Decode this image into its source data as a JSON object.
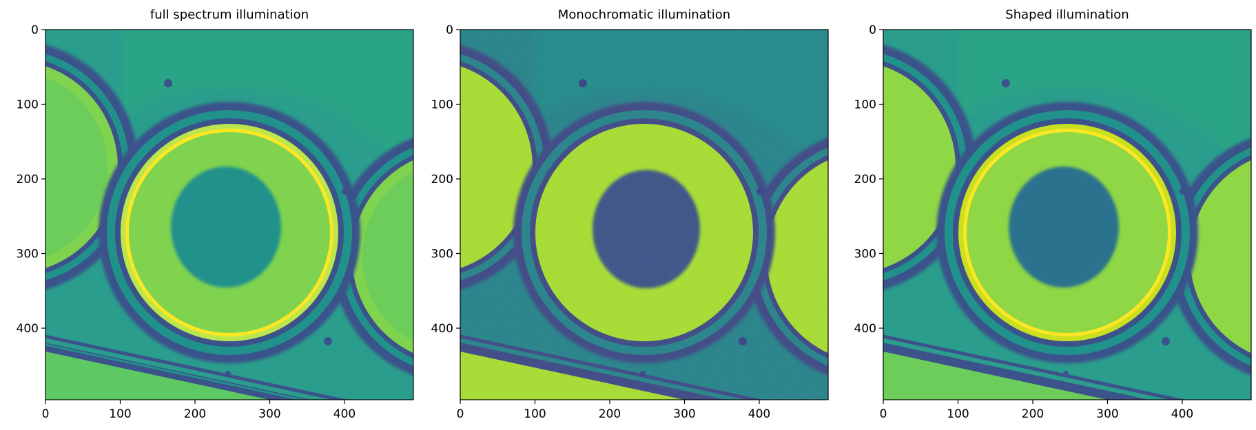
{
  "colors": {
    "viridis_dark": "#440154",
    "viridis_deep_blue": "#3b528b",
    "viridis_teal": "#21918c",
    "viridis_green": "#5ec962",
    "viridis_yellow": "#fde725",
    "axis": "#000000",
    "background": "#ffffff"
  },
  "panels": [
    {
      "title": "full spectrum illumination",
      "x_ticks": [
        "0",
        "100",
        "200",
        "300",
        "400"
      ],
      "y_ticks": [
        "0",
        "100",
        "200",
        "300",
        "400"
      ]
    },
    {
      "title": "Monochromatic illumination",
      "x_ticks": [
        "0",
        "100",
        "200",
        "300",
        "400"
      ],
      "y_ticks": [
        "0",
        "100",
        "200",
        "300",
        "400"
      ]
    },
    {
      "title": "Shaped illumination",
      "x_ticks": [
        "0",
        "100",
        "200",
        "300",
        "400"
      ],
      "y_ticks": [
        "0",
        "100",
        "200",
        "300",
        "400"
      ]
    }
  ]
}
